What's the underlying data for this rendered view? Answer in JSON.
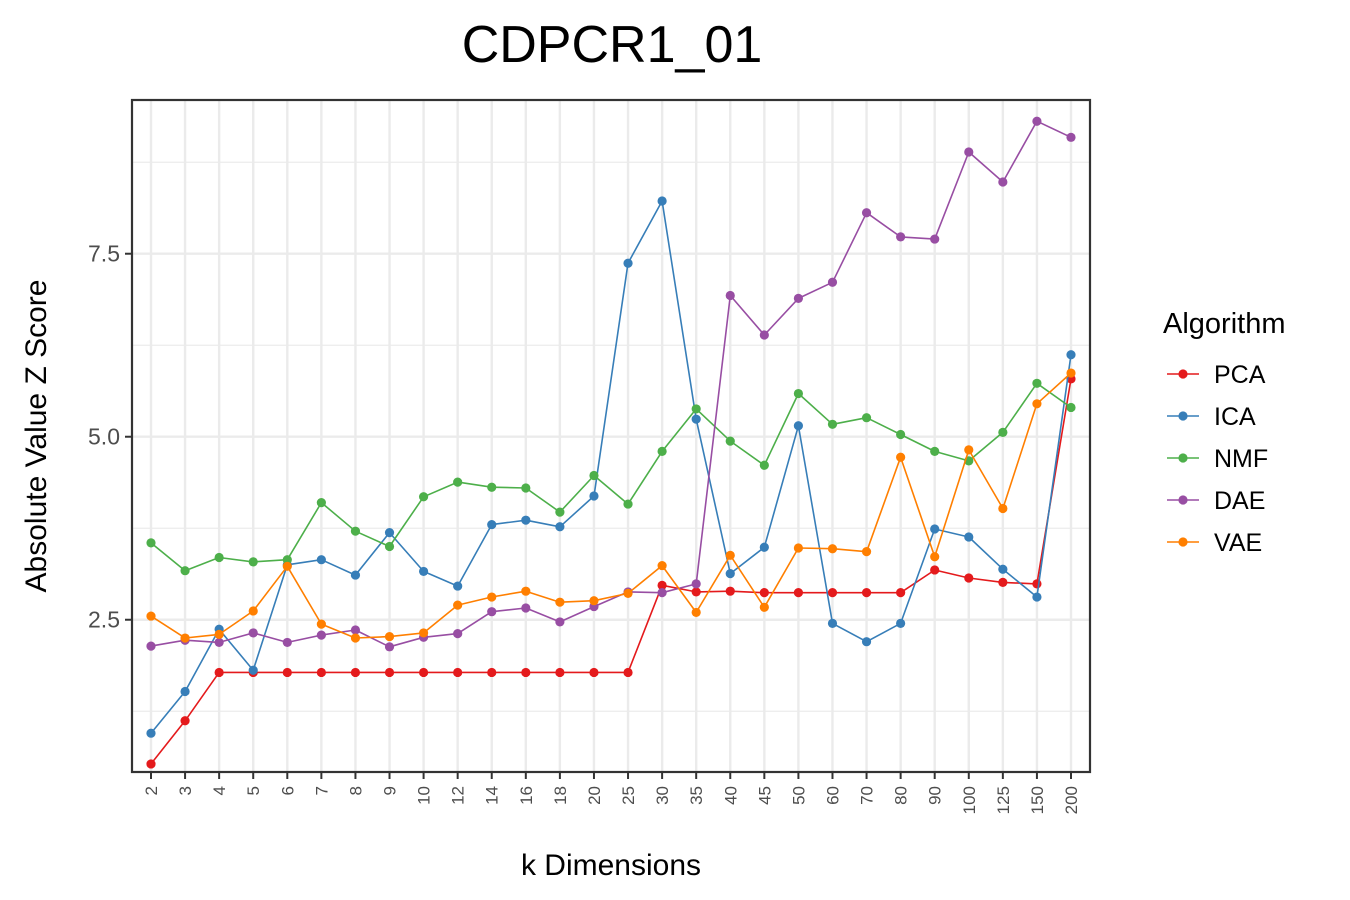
{
  "chart_data": {
    "type": "line",
    "title": "CDPCR1_01",
    "xlabel": "k Dimensions",
    "ylabel": "Absolute Value Z Score",
    "categories": [
      "2",
      "3",
      "4",
      "5",
      "6",
      "7",
      "8",
      "9",
      "10",
      "12",
      "14",
      "16",
      "18",
      "20",
      "25",
      "30",
      "35",
      "40",
      "45",
      "50",
      "60",
      "70",
      "80",
      "90",
      "100",
      "125",
      "150",
      "200"
    ],
    "ylim": [
      0.42,
      9.6
    ],
    "yticks": [
      2.5,
      5.0,
      7.5
    ],
    "ytick_labels": [
      "2.5",
      "5.0",
      "7.5"
    ],
    "grid": true,
    "legend_title": "Algorithm",
    "legend_position": "right",
    "series": [
      {
        "name": "PCA",
        "color": "#e41a1c",
        "values": [
          0.53,
          1.12,
          1.78,
          1.78,
          1.78,
          1.78,
          1.78,
          1.78,
          1.78,
          1.78,
          1.78,
          1.78,
          1.78,
          1.78,
          1.78,
          2.97,
          2.88,
          2.89,
          2.87,
          2.87,
          2.87,
          2.87,
          2.87,
          3.18,
          3.07,
          3.01,
          2.99,
          5.79
        ]
      },
      {
        "name": "ICA",
        "color": "#377eb8",
        "values": [
          0.95,
          1.52,
          2.37,
          1.81,
          3.25,
          3.32,
          3.11,
          3.69,
          3.16,
          2.96,
          3.8,
          3.86,
          3.77,
          4.19,
          7.37,
          8.22,
          5.24,
          3.13,
          3.49,
          5.15,
          2.45,
          2.2,
          2.45,
          3.74,
          3.63,
          3.19,
          2.81,
          6.12
        ]
      },
      {
        "name": "NMF",
        "color": "#4daf4a",
        "values": [
          3.55,
          3.17,
          3.35,
          3.29,
          3.32,
          4.1,
          3.71,
          3.5,
          4.18,
          4.38,
          4.31,
          4.3,
          3.97,
          4.47,
          4.08,
          4.8,
          5.38,
          4.94,
          4.61,
          5.59,
          5.17,
          5.26,
          5.03,
          4.8,
          4.67,
          5.06,
          5.73,
          5.4
        ]
      },
      {
        "name": "DAE",
        "color": "#984ea3",
        "values": [
          2.14,
          2.22,
          2.19,
          2.32,
          2.19,
          2.29,
          2.36,
          2.13,
          2.26,
          2.31,
          2.61,
          2.66,
          2.47,
          2.68,
          2.88,
          2.87,
          2.99,
          6.93,
          6.39,
          6.89,
          7.11,
          8.06,
          7.73,
          7.7,
          8.89,
          8.48,
          9.31,
          9.09
        ]
      },
      {
        "name": "VAE",
        "color": "#ff7f00",
        "values": [
          2.55,
          2.25,
          2.3,
          2.62,
          3.23,
          2.44,
          2.25,
          2.27,
          2.32,
          2.7,
          2.81,
          2.89,
          2.74,
          2.76,
          2.86,
          3.24,
          2.6,
          3.38,
          2.67,
          3.48,
          3.47,
          3.43,
          4.72,
          3.36,
          4.82,
          4.02,
          5.45,
          5.87
        ]
      }
    ]
  }
}
